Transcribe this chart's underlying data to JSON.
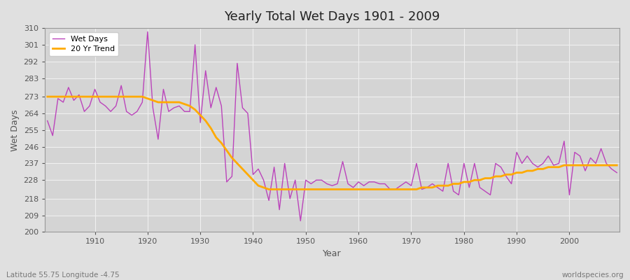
{
  "title": "Yearly Total Wet Days 1901 - 2009",
  "xlabel": "Year",
  "ylabel": "Wet Days",
  "subtitle": "Latitude 55.75 Longitude -4.75",
  "watermark": "worldspecies.org",
  "ylim": [
    200,
    310
  ],
  "yticks": [
    200,
    209,
    218,
    228,
    237,
    246,
    255,
    264,
    273,
    283,
    292,
    301,
    310
  ],
  "xlim": [
    1901,
    2009
  ],
  "wet_days_color": "#bb44bb",
  "trend_color": "#ffaa00",
  "bg_color": "#e0e0e0",
  "plot_bg_color": "#d8d8d8",
  "grid_color": "#f0f0f0",
  "years": [
    1901,
    1902,
    1903,
    1904,
    1905,
    1906,
    1907,
    1908,
    1909,
    1910,
    1911,
    1912,
    1913,
    1914,
    1915,
    1916,
    1917,
    1918,
    1919,
    1920,
    1921,
    1922,
    1923,
    1924,
    1925,
    1926,
    1927,
    1928,
    1929,
    1930,
    1931,
    1932,
    1933,
    1934,
    1935,
    1936,
    1937,
    1938,
    1939,
    1940,
    1941,
    1942,
    1943,
    1944,
    1945,
    1946,
    1947,
    1948,
    1949,
    1950,
    1951,
    1952,
    1953,
    1954,
    1955,
    1956,
    1957,
    1958,
    1959,
    1960,
    1961,
    1962,
    1963,
    1964,
    1965,
    1966,
    1967,
    1968,
    1969,
    1970,
    1971,
    1972,
    1973,
    1974,
    1975,
    1976,
    1977,
    1978,
    1979,
    1980,
    1981,
    1982,
    1983,
    1984,
    1985,
    1986,
    1987,
    1988,
    1989,
    1990,
    1991,
    1992,
    1993,
    1994,
    1995,
    1996,
    1997,
    1998,
    1999,
    2000,
    2001,
    2002,
    2003,
    2004,
    2005,
    2006,
    2007,
    2008,
    2009
  ],
  "wet_days": [
    260,
    252,
    272,
    270,
    278,
    271,
    274,
    265,
    268,
    277,
    270,
    268,
    265,
    268,
    279,
    265,
    263,
    265,
    270,
    308,
    267,
    250,
    277,
    265,
    267,
    268,
    265,
    265,
    301,
    259,
    287,
    267,
    278,
    268,
    227,
    230,
    291,
    267,
    264,
    231,
    234,
    228,
    217,
    235,
    212,
    237,
    218,
    228,
    206,
    228,
    226,
    228,
    228,
    226,
    225,
    226,
    238,
    226,
    224,
    227,
    225,
    227,
    227,
    226,
    226,
    223,
    223,
    225,
    227,
    225,
    237,
    223,
    224,
    226,
    224,
    222,
    237,
    222,
    220,
    237,
    224,
    237,
    224,
    222,
    220,
    237,
    235,
    230,
    226,
    243,
    237,
    241,
    237,
    235,
    237,
    241,
    236,
    237,
    249,
    220,
    243,
    241,
    233,
    240,
    237,
    245,
    237,
    234,
    232
  ],
  "trend": [
    273,
    273,
    273,
    273,
    273,
    273,
    273,
    273,
    273,
    273,
    273,
    273,
    273,
    273,
    273,
    273,
    273,
    273,
    273,
    272,
    271,
    270,
    270,
    270,
    270,
    270,
    269,
    268,
    266,
    263,
    260,
    256,
    251,
    248,
    244,
    240,
    237,
    234,
    231,
    228,
    225,
    224,
    223,
    223,
    223,
    223,
    223,
    223,
    223,
    223,
    223,
    223,
    223,
    223,
    223,
    223,
    223,
    223,
    223,
    223,
    223,
    223,
    223,
    223,
    223,
    223,
    223,
    223,
    223,
    223,
    223,
    224,
    224,
    224,
    225,
    225,
    225,
    226,
    226,
    227,
    227,
    228,
    228,
    229,
    229,
    230,
    230,
    231,
    231,
    232,
    232,
    233,
    233,
    234,
    234,
    235,
    235,
    235,
    236,
    236,
    236,
    236,
    236,
    236,
    236,
    236,
    236,
    236,
    236
  ]
}
